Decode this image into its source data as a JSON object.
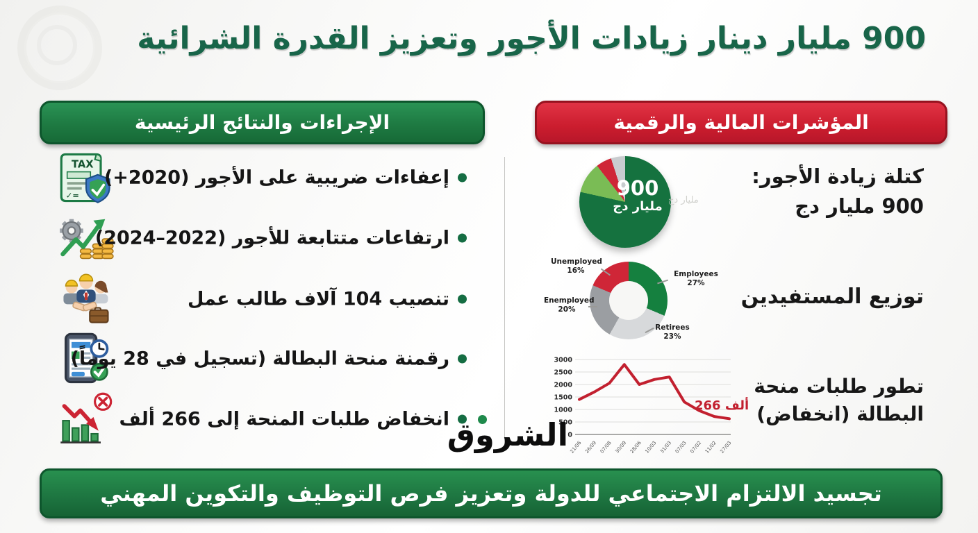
{
  "title": {
    "text": "900 مليار دينار زيادات الأجور وتعزيز القدرة الشرائية",
    "color": "#186549"
  },
  "left_panel": {
    "header": "الإجراءات والنتائج الرئيسية",
    "items": [
      {
        "icon": "tax-exemption-icon",
        "text": "إعفاءات ضريبية على الأجور (2020+)"
      },
      {
        "icon": "wage-growth-icon",
        "text": "ارتفاعات متتابعة للأجور (2022–2024)"
      },
      {
        "icon": "job-placement-icon",
        "text": "تنصيب 104 آلاف طالب عمل"
      },
      {
        "icon": "digital-grant-icon",
        "text": "رقمنة منحة البطالة (تسجيل في 28 يوماً)"
      },
      {
        "icon": "grant-decline-icon",
        "text": "انخفاض طلبات المنحة إلى 266 ألف"
      }
    ]
  },
  "right_panel": {
    "header": "المؤشرات المالية والرقمية",
    "wage_label_line1": "كتلة زيادة الأجور:",
    "wage_label_line2": "900 مليار دج",
    "beneficiaries_label": "توزيع المستفيدين",
    "grant_label": "تطور طلبات منحة البطالة (انخفاض)",
    "ghost_text": "مليار دج"
  },
  "chart_data": [
    {
      "type": "pie",
      "center_value": "900",
      "center_unit": "مليار دج",
      "slices": [
        {
          "value": 78.5,
          "color": "#15723f"
        },
        {
          "value": 11,
          "color": "#7abc55"
        },
        {
          "value": 5.5,
          "color": "#cf2637"
        },
        {
          "value": 5,
          "color": "#c9cccf"
        }
      ]
    },
    {
      "type": "donut",
      "title": "توزيع المستفيدين",
      "segments": [
        {
          "label": "Employees",
          "pct": 27,
          "pct_label": "27%",
          "color": "#15803f"
        },
        {
          "label": "Retirees",
          "pct": 23,
          "pct_label": "23%",
          "color": "#d7d9db"
        },
        {
          "label": "Enemployed",
          "pct": 20,
          "pct_label": "20%",
          "color": "#9b9ea2"
        },
        {
          "label": "Unemployed",
          "pct": 16,
          "pct_label": "16%",
          "color": "#cf2637"
        }
      ]
    },
    {
      "type": "line",
      "title": "تطور طلبات منحة البطالة (انخفاض)",
      "y_ticks": [
        0,
        500,
        1000,
        1500,
        2000,
        2500,
        3000
      ],
      "ylim": [
        0,
        3000
      ],
      "x": [
        "21/06",
        "26/09",
        "07/08",
        "30/09",
        "28/06",
        "10/03",
        "31/03",
        "07/03",
        "07/02",
        "11/02",
        "27/03"
      ],
      "values": [
        1400,
        1700,
        2050,
        2800,
        2000,
        2200,
        2300,
        1300,
        950,
        720,
        630
      ],
      "annotation": "266 ألف",
      "line_color": "#c2202f",
      "grid": true
    }
  ],
  "logo": {
    "text": "الشروق",
    "dot_color": "#1f8a4c"
  },
  "footer": {
    "text": "تجسيد الالتزام الاجتماعي للدولة وتعزيز فرص التوظيف والتكوين المهني"
  },
  "colors": {
    "accent_green": "#1e7a42",
    "accent_red": "#cb1d2e",
    "title_green": "#186549"
  }
}
